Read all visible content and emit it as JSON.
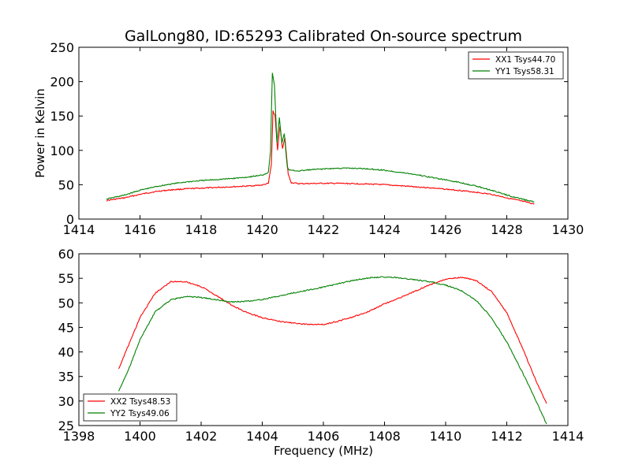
{
  "figure": {
    "title": "GalLong80, ID:65293 Calibrated On-source spectrum"
  },
  "chart_data": [
    {
      "type": "line",
      "title": "GalLong80, ID:65293 Calibrated On-source spectrum",
      "xlabel": "",
      "ylabel": "Power in Kelvin",
      "xlim": [
        1414,
        1430
      ],
      "ylim": [
        0,
        250
      ],
      "xticks": [
        "1414",
        "1416",
        "1418",
        "1420",
        "1422",
        "1424",
        "1426",
        "1428",
        "1430"
      ],
      "yticks": [
        "0",
        "50",
        "100",
        "150",
        "200",
        "250"
      ],
      "grid": false,
      "legend_position": "top-right",
      "series": [
        {
          "name": "XX1 Tsys44.70",
          "color": "#ff0000",
          "points": [
            [
              1414.9,
              27
            ],
            [
              1415.5,
              31
            ],
            [
              1416,
              36
            ],
            [
              1416.5,
              40
            ],
            [
              1417,
              42.5
            ],
            [
              1417.5,
              44
            ],
            [
              1418,
              45
            ],
            [
              1418.5,
              46
            ],
            [
              1419,
              47
            ],
            [
              1419.5,
              48
            ],
            [
              1420,
              49.5
            ],
            [
              1420.2,
              52
            ],
            [
              1420.3,
              80
            ],
            [
              1420.35,
              157
            ],
            [
              1420.42,
              150
            ],
            [
              1420.5,
              100
            ],
            [
              1420.58,
              136
            ],
            [
              1420.66,
              103
            ],
            [
              1420.74,
              118
            ],
            [
              1420.85,
              65
            ],
            [
              1420.95,
              53
            ],
            [
              1421.2,
              51.5
            ],
            [
              1422,
              52
            ],
            [
              1422.5,
              52
            ],
            [
              1423,
              51.5
            ],
            [
              1423.5,
              51
            ],
            [
              1424,
              50
            ],
            [
              1424.5,
              48.5
            ],
            [
              1425,
              47
            ],
            [
              1425.5,
              45.5
            ],
            [
              1426,
              43.5
            ],
            [
              1426.5,
              41.5
            ],
            [
              1427,
              39
            ],
            [
              1427.5,
              36
            ],
            [
              1428,
              31
            ],
            [
              1428.5,
              26
            ],
            [
              1428.9,
              22
            ]
          ]
        },
        {
          "name": "YY1 Tsys58.31",
          "color": "#008000",
          "points": [
            [
              1414.9,
              29
            ],
            [
              1415.5,
              35
            ],
            [
              1416,
              42
            ],
            [
              1416.5,
              47
            ],
            [
              1417,
              51
            ],
            [
              1417.5,
              54
            ],
            [
              1418,
              56
            ],
            [
              1418.5,
              57.5
            ],
            [
              1419,
              59
            ],
            [
              1419.5,
              61
            ],
            [
              1420,
              64
            ],
            [
              1420.2,
              68
            ],
            [
              1420.27,
              100
            ],
            [
              1420.33,
              213
            ],
            [
              1420.4,
              195
            ],
            [
              1420.48,
              110
            ],
            [
              1420.56,
              148
            ],
            [
              1420.64,
              110
            ],
            [
              1420.72,
              125
            ],
            [
              1420.82,
              75
            ],
            [
              1420.9,
              71
            ],
            [
              1421.2,
              70
            ],
            [
              1421.5,
              71.5
            ],
            [
              1422,
              73
            ],
            [
              1422.5,
              74
            ],
            [
              1423,
              74
            ],
            [
              1423.5,
              73
            ],
            [
              1424,
              71
            ],
            [
              1424.5,
              68
            ],
            [
              1425,
              65
            ],
            [
              1425.5,
              61
            ],
            [
              1426,
              57
            ],
            [
              1426.5,
              53
            ],
            [
              1427,
              48
            ],
            [
              1427.5,
              42
            ],
            [
              1428,
              35
            ],
            [
              1428.5,
              29
            ],
            [
              1428.9,
              25
            ]
          ]
        }
      ]
    },
    {
      "type": "line",
      "title": "",
      "xlabel": "Frequency (MHz)",
      "ylabel": "",
      "xlim": [
        1398,
        1414
      ],
      "ylim": [
        25,
        60
      ],
      "xticks": [
        "1398",
        "1400",
        "1402",
        "1404",
        "1406",
        "1408",
        "1410",
        "1412",
        "1414"
      ],
      "yticks": [
        "25",
        "30",
        "35",
        "40",
        "45",
        "50",
        "55",
        "60"
      ],
      "grid": false,
      "legend_position": "bottom-left",
      "series": [
        {
          "name": "XX2 Tsys48.53",
          "color": "#ff0000",
          "points": [
            [
              1399.3,
              36.5
            ],
            [
              1399.6,
              41
            ],
            [
              1400,
              47
            ],
            [
              1400.5,
              52
            ],
            [
              1401,
              54.3
            ],
            [
              1401.5,
              54.3
            ],
            [
              1402,
              53.3
            ],
            [
              1402.5,
              51.5
            ],
            [
              1403,
              49.5
            ],
            [
              1403.5,
              48
            ],
            [
              1404,
              47
            ],
            [
              1404.5,
              46.3
            ],
            [
              1405,
              45.9
            ],
            [
              1405.5,
              45.6
            ],
            [
              1406,
              45.6
            ],
            [
              1406.5,
              46.3
            ],
            [
              1407,
              47.2
            ],
            [
              1407.5,
              48.3
            ],
            [
              1408,
              49.8
            ],
            [
              1408.5,
              51
            ],
            [
              1409,
              52.4
            ],
            [
              1409.5,
              53.7
            ],
            [
              1410,
              54.8
            ],
            [
              1410.5,
              55.2
            ],
            [
              1411,
              54.6
            ],
            [
              1411.5,
              52.3
            ],
            [
              1412,
              48
            ],
            [
              1412.5,
              41
            ],
            [
              1413,
              33.5
            ],
            [
              1413.3,
              29.5
            ]
          ]
        },
        {
          "name": "YY2 Tsys49.06",
          "color": "#008000",
          "points": [
            [
              1399.3,
              32
            ],
            [
              1399.6,
              36
            ],
            [
              1400,
              42.5
            ],
            [
              1400.5,
              48.2
            ],
            [
              1401,
              50.6
            ],
            [
              1401.5,
              51.3
            ],
            [
              1402,
              51.1
            ],
            [
              1402.5,
              50.6
            ],
            [
              1403,
              50.2
            ],
            [
              1403.5,
              50.3
            ],
            [
              1404,
              50.7
            ],
            [
              1404.5,
              51.3
            ],
            [
              1405,
              52
            ],
            [
              1405.5,
              52.6
            ],
            [
              1406,
              53.2
            ],
            [
              1406.5,
              53.9
            ],
            [
              1407,
              54.6
            ],
            [
              1407.5,
              55.1
            ],
            [
              1408,
              55.3
            ],
            [
              1408.5,
              55.1
            ],
            [
              1409,
              54.7
            ],
            [
              1409.5,
              54.3
            ],
            [
              1410,
              53.6
            ],
            [
              1410.5,
              52.5
            ],
            [
              1411,
              50.5
            ],
            [
              1411.5,
              47
            ],
            [
              1412,
              42
            ],
            [
              1412.5,
              36
            ],
            [
              1413,
              29.5
            ],
            [
              1413.3,
              25.3
            ]
          ]
        }
      ]
    }
  ]
}
